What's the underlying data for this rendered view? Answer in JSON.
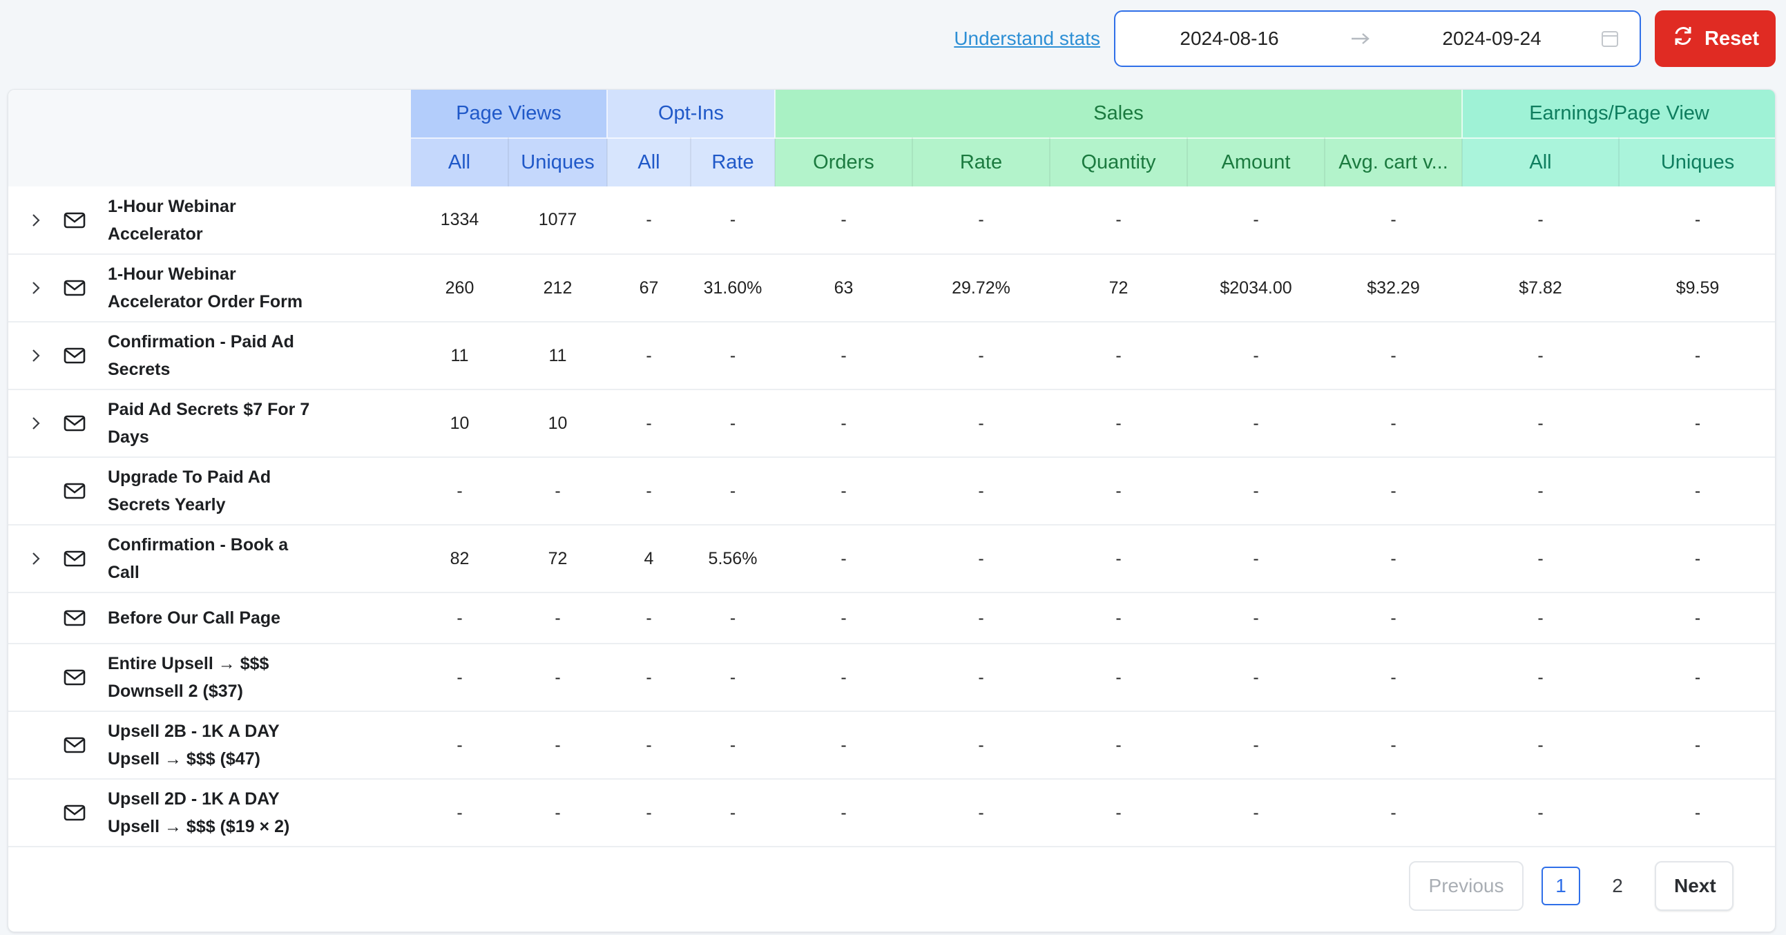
{
  "toolbar": {
    "understand_stats": "Understand stats",
    "date_from": "2024-08-16",
    "date_to": "2024-09-24",
    "reset_label": "Reset"
  },
  "headers": {
    "groups": [
      "Page Views",
      "Opt-Ins",
      "Sales",
      "Earnings/Page View"
    ],
    "columns": [
      "All",
      "Uniques",
      "All",
      "Rate",
      "Orders",
      "Rate",
      "Quantity",
      "Amount",
      "Avg. cart v...",
      "All",
      "Uniques"
    ]
  },
  "rows": [
    {
      "name": "1-Hour Webinar Accelerator",
      "expandable": true,
      "values": [
        "1334",
        "1077",
        "-",
        "-",
        "-",
        "-",
        "-",
        "-",
        "-",
        "-",
        "-"
      ]
    },
    {
      "name": "1-Hour Webinar Accelerator Order Form",
      "expandable": true,
      "values": [
        "260",
        "212",
        "67",
        "31.60%",
        "63",
        "29.72%",
        "72",
        "$2034.00",
        "$32.29",
        "$7.82",
        "$9.59"
      ]
    },
    {
      "name": "Confirmation - Paid Ad Secrets",
      "expandable": true,
      "values": [
        "11",
        "11",
        "-",
        "-",
        "-",
        "-",
        "-",
        "-",
        "-",
        "-",
        "-"
      ]
    },
    {
      "name": "Paid Ad Secrets $7 For 7 Days",
      "expandable": true,
      "values": [
        "10",
        "10",
        "-",
        "-",
        "-",
        "-",
        "-",
        "-",
        "-",
        "-",
        "-"
      ]
    },
    {
      "name": "Upgrade To Paid Ad Secrets Yearly",
      "expandable": false,
      "values": [
        "-",
        "-",
        "-",
        "-",
        "-",
        "-",
        "-",
        "-",
        "-",
        "-",
        "-"
      ]
    },
    {
      "name": "Confirmation - Book a Call",
      "expandable": true,
      "values": [
        "82",
        "72",
        "4",
        "5.56%",
        "-",
        "-",
        "-",
        "-",
        "-",
        "-",
        "-"
      ]
    },
    {
      "name": "Before Our Call Page",
      "expandable": false,
      "short": true,
      "values": [
        "-",
        "-",
        "-",
        "-",
        "-",
        "-",
        "-",
        "-",
        "-",
        "-",
        "-"
      ]
    },
    {
      "name": "Entire Upsell → $$$ Downsell 2 ($37)",
      "expandable": false,
      "values": [
        "-",
        "-",
        "-",
        "-",
        "-",
        "-",
        "-",
        "-",
        "-",
        "-",
        "-"
      ]
    },
    {
      "name": "Upsell 2B - 1K A DAY Upsell → $$$ ($47)",
      "expandable": false,
      "values": [
        "-",
        "-",
        "-",
        "-",
        "-",
        "-",
        "-",
        "-",
        "-",
        "-",
        "-"
      ]
    },
    {
      "name": "Upsell 2D - 1K A DAY Upsell → $$$ ($19 × 2)",
      "expandable": false,
      "values": [
        "-",
        "-",
        "-",
        "-",
        "-",
        "-",
        "-",
        "-",
        "-",
        "-",
        "-"
      ]
    }
  ],
  "pagination": {
    "previous": "Previous",
    "pages": [
      "1",
      "2"
    ],
    "current": "1",
    "next": "Next"
  }
}
